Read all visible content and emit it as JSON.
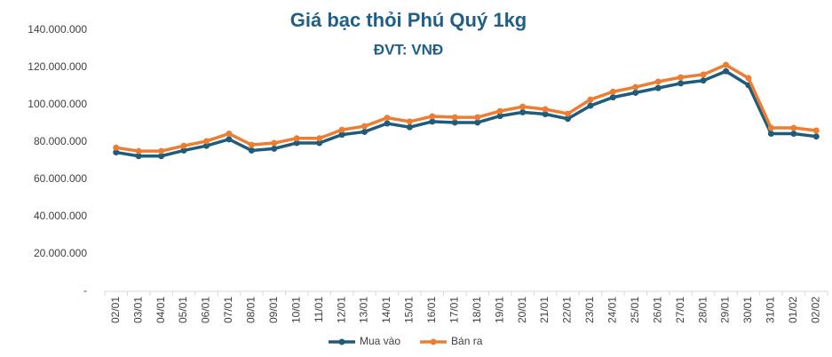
{
  "chart_data": {
    "type": "line",
    "title": "Giá bạc thỏi Phú Quý 1kg",
    "subtitle": "ĐVT: VNĐ",
    "categories": [
      "02/01",
      "03/01",
      "04/01",
      "05/01",
      "06/01",
      "07/01",
      "08/01",
      "09/01",
      "10/01",
      "11/01",
      "12/01",
      "13/01",
      "14/01",
      "15/01",
      "16/01",
      "17/01",
      "18/01",
      "19/01",
      "20/01",
      "21/01",
      "22/01",
      "23/01",
      "24/01",
      "25/01",
      "26/01",
      "27/01",
      "28/01",
      "29/01",
      "30/01",
      "31/01",
      "01/02",
      "02/02"
    ],
    "series": [
      {
        "name": "Mua vào",
        "color": "#1f5c7a",
        "values": [
          74500000,
          72500000,
          72500000,
          75500000,
          78000000,
          81500000,
          75500000,
          76500000,
          79500000,
          79500000,
          84000000,
          85500000,
          90000000,
          88000000,
          91000000,
          90500000,
          90500000,
          94000000,
          96000000,
          95000000,
          92500000,
          99500000,
          104000000,
          106500000,
          109000000,
          111500000,
          113000000,
          118000000,
          110500000,
          84500000,
          84500000,
          83000000
        ]
      },
      {
        "name": "Bán ra",
        "color": "#ed7d31",
        "values": [
          77000000,
          75200000,
          75200000,
          78000000,
          80500000,
          84500000,
          78500000,
          79500000,
          82000000,
          82000000,
          86600000,
          88500000,
          93000000,
          91000000,
          93800000,
          93300000,
          93300000,
          96600000,
          99000000,
          97600000,
          95200000,
          102800000,
          107000000,
          109500000,
          112400000,
          114700000,
          116200000,
          121400000,
          114300000,
          87600000,
          87600000,
          86200000
        ]
      }
    ],
    "ylim": [
      0,
      140000000
    ],
    "yticks": [
      {
        "value": 0,
        "label": "-"
      },
      {
        "value": 20000000,
        "label": "20.000.000"
      },
      {
        "value": 40000000,
        "label": "40.000.000"
      },
      {
        "value": 60000000,
        "label": "60.000.000"
      },
      {
        "value": 80000000,
        "label": "80.000.000"
      },
      {
        "value": 100000000,
        "label": "100.000.000"
      },
      {
        "value": 120000000,
        "label": "120.000.000"
      },
      {
        "value": 140000000,
        "label": "140.000.000"
      }
    ],
    "legend": "bottom"
  }
}
